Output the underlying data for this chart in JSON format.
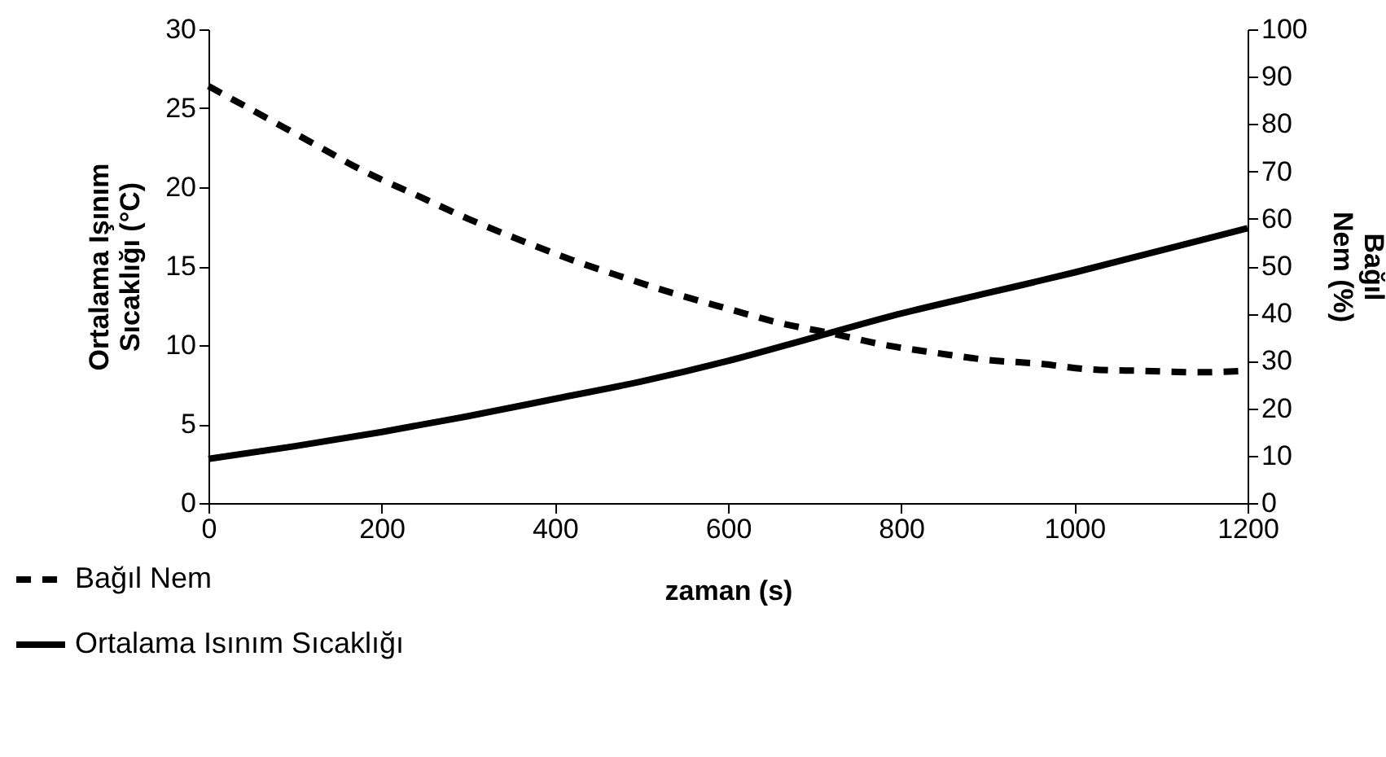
{
  "chart_data": {
    "type": "line",
    "xlabel": "zaman (s)",
    "ylabel": "Ortalama Işınım Sıcaklığı (°C)",
    "y2label": "Bağıl Nem (%)",
    "xlim": [
      0,
      1200
    ],
    "xticks": [
      0,
      200,
      400,
      600,
      800,
      1000,
      1200
    ],
    "ylim": [
      0,
      30
    ],
    "yticks": [
      0,
      5,
      10,
      15,
      20,
      25,
      30
    ],
    "y2lim": [
      0,
      100
    ],
    "y2ticks": [
      0,
      10,
      20,
      30,
      40,
      50,
      60,
      70,
      80,
      90,
      100
    ],
    "legend": "bottom left",
    "grid": false,
    "series": [
      {
        "name": "Bağıl Nem",
        "color": "#000000",
        "axis": "y2",
        "line_style": "dashed",
        "x": [
          0,
          60,
          120,
          180,
          240,
          300,
          360,
          420,
          480,
          540,
          600,
          660,
          720,
          780,
          840,
          900,
          960,
          1020,
          1080,
          1140,
          1200
        ],
        "values": [
          88,
          82,
          76,
          70,
          65,
          60,
          55.5,
          51.3,
          47.6,
          44.1,
          41,
          38,
          35.8,
          33.4,
          31.7,
          30.2,
          29.4,
          28.2,
          27.9,
          27.6,
          27.9
        ]
      },
      {
        "name": "Ortalama Isınım Sıcaklığı",
        "color": "#000000",
        "line_style": "solid",
        "x": [
          0,
          100,
          200,
          300,
          400,
          500,
          600,
          700,
          800,
          900,
          1000,
          1100,
          1200
        ],
        "values": [
          2.8,
          3.6,
          4.5,
          5.5,
          6.6,
          7.7,
          9.0,
          10.5,
          12.0,
          13.3,
          14.6,
          16.0,
          17.4
        ]
      }
    ]
  }
}
